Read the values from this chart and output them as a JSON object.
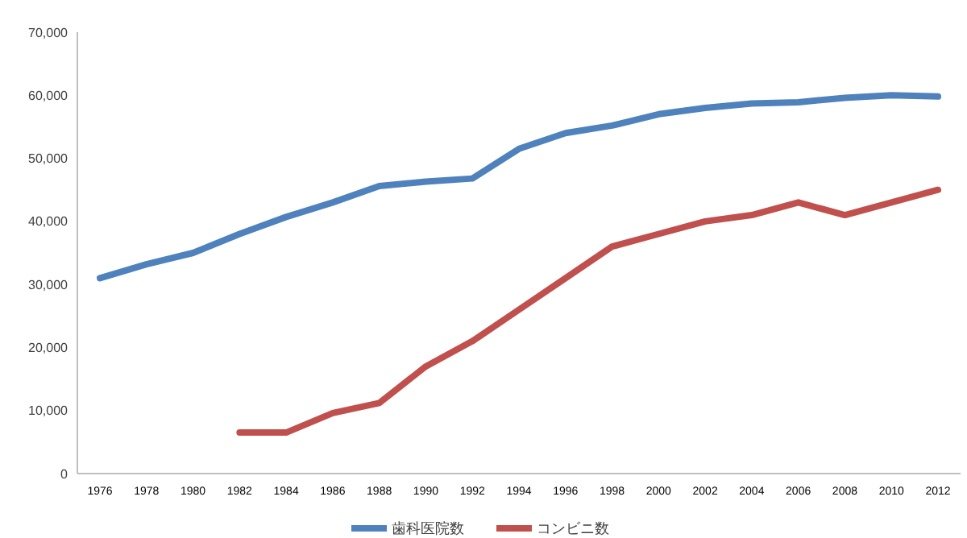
{
  "chart_data": {
    "type": "line",
    "categories": [
      "1976",
      "1978",
      "1980",
      "1982",
      "1984",
      "1986",
      "1988",
      "1990",
      "1992",
      "1994",
      "1996",
      "1998",
      "2000",
      "2002",
      "2004",
      "2006",
      "2008",
      "2010",
      "2012"
    ],
    "series": [
      {
        "name": "歯科医院数",
        "color": "#4f81bd",
        "values": [
          31000,
          33200,
          35000,
          38000,
          40700,
          43000,
          45600,
          46300,
          46800,
          51500,
          54000,
          55200,
          57000,
          58000,
          58700,
          58900,
          59600,
          60000,
          59800
        ]
      },
      {
        "name": "コンビニ数",
        "color": "#c0504d",
        "values": [
          null,
          null,
          null,
          6500,
          6500,
          9600,
          11200,
          17000,
          21000,
          26000,
          31000,
          36000,
          38000,
          40000,
          41000,
          43000,
          41000,
          43000,
          45000
        ]
      }
    ],
    "ylim": [
      0,
      70000
    ],
    "yticks": [
      0,
      {
        "value": 10000,
        "label": "10,000"
      },
      {
        "value": 20000,
        "label": "20,000"
      },
      {
        "value": 30000,
        "label": "30,000"
      },
      {
        "value": 40000,
        "label": "40,000"
      },
      {
        "value": 50000,
        "label": "50,000"
      },
      {
        "value": 60000,
        "label": "60,000"
      },
      {
        "value": 70000,
        "label": "70,000"
      }
    ],
    "grid": false,
    "legend": "bottom",
    "marker": "none",
    "line_style": "solid"
  }
}
